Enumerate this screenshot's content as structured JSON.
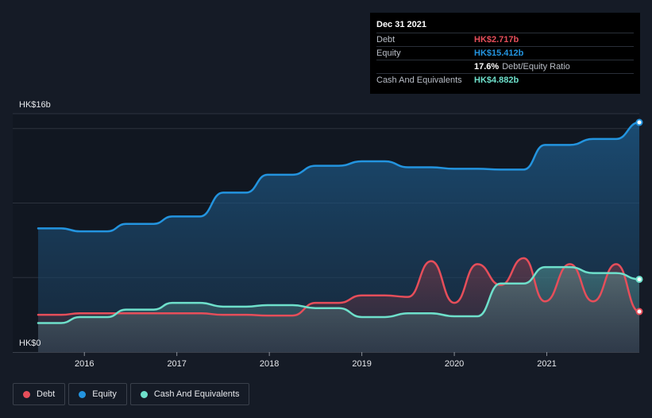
{
  "tooltip": {
    "date": "Dec 31 2021",
    "debt_label": "Debt",
    "debt_value": "HK$2.717b",
    "equity_label": "Equity",
    "equity_value": "HK$15.412b",
    "ratio_value": "17.6%",
    "ratio_label": "Debt/Equity Ratio",
    "cash_label": "Cash And Equivalents",
    "cash_value": "HK$4.882b"
  },
  "legend": {
    "debt": "Debt",
    "equity": "Equity",
    "cash": "Cash And Equivalents"
  },
  "colors": {
    "background": "#151b26",
    "debt": "#e64e5a",
    "equity": "#2394df",
    "cash": "#6ee0cb",
    "grid": "#2c323d"
  },
  "chart_data": {
    "type": "area",
    "ylabel_top": "HK$16b",
    "ylabel_bottom": "HK$0",
    "ylim": [
      0,
      16
    ],
    "xlim": [
      2015.5,
      2022.0
    ],
    "grid": true,
    "legend_position": "bottom-left",
    "x_ticks": [
      "2016",
      "2017",
      "2018",
      "2019",
      "2020",
      "2021"
    ],
    "series": [
      {
        "name": "Equity",
        "color": "#2394df",
        "points": [
          [
            2015.5,
            8.3
          ],
          [
            2015.75,
            8.3
          ],
          [
            2015.95,
            8.1
          ],
          [
            2016.25,
            8.1
          ],
          [
            2016.45,
            8.6
          ],
          [
            2016.75,
            8.6
          ],
          [
            2016.95,
            9.1
          ],
          [
            2017.25,
            9.1
          ],
          [
            2017.5,
            10.7
          ],
          [
            2017.75,
            10.7
          ],
          [
            2017.98,
            11.9
          ],
          [
            2018.25,
            11.9
          ],
          [
            2018.5,
            12.5
          ],
          [
            2018.75,
            12.5
          ],
          [
            2019.0,
            12.8
          ],
          [
            2019.25,
            12.8
          ],
          [
            2019.5,
            12.4
          ],
          [
            2019.75,
            12.4
          ],
          [
            2020.0,
            12.3
          ],
          [
            2020.25,
            12.3
          ],
          [
            2020.5,
            12.25
          ],
          [
            2020.75,
            12.25
          ],
          [
            2020.98,
            13.9
          ],
          [
            2021.25,
            13.9
          ],
          [
            2021.5,
            14.3
          ],
          [
            2021.75,
            14.3
          ],
          [
            2022.0,
            15.412
          ]
        ]
      },
      {
        "name": "Debt",
        "color": "#e64e5a",
        "points": [
          [
            2015.5,
            2.5
          ],
          [
            2015.75,
            2.5
          ],
          [
            2015.95,
            2.6
          ],
          [
            2016.25,
            2.6
          ],
          [
            2016.45,
            2.6
          ],
          [
            2016.75,
            2.6
          ],
          [
            2016.95,
            2.6
          ],
          [
            2017.25,
            2.6
          ],
          [
            2017.5,
            2.5
          ],
          [
            2017.75,
            2.5
          ],
          [
            2017.98,
            2.45
          ],
          [
            2018.25,
            2.45
          ],
          [
            2018.5,
            3.3
          ],
          [
            2018.75,
            3.3
          ],
          [
            2019.0,
            3.8
          ],
          [
            2019.25,
            3.8
          ],
          [
            2019.5,
            3.7
          ],
          [
            2019.75,
            6.1
          ],
          [
            2020.0,
            3.3
          ],
          [
            2020.25,
            5.9
          ],
          [
            2020.5,
            4.5
          ],
          [
            2020.75,
            6.3
          ],
          [
            2020.98,
            3.4
          ],
          [
            2021.25,
            5.9
          ],
          [
            2021.5,
            3.4
          ],
          [
            2021.75,
            5.9
          ],
          [
            2022.0,
            2.717
          ]
        ]
      },
      {
        "name": "Cash And Equivalents",
        "color": "#6ee0cb",
        "points": [
          [
            2015.5,
            1.95
          ],
          [
            2015.75,
            1.95
          ],
          [
            2015.95,
            2.35
          ],
          [
            2016.25,
            2.35
          ],
          [
            2016.45,
            2.85
          ],
          [
            2016.75,
            2.85
          ],
          [
            2016.95,
            3.3
          ],
          [
            2017.25,
            3.3
          ],
          [
            2017.5,
            3.05
          ],
          [
            2017.75,
            3.05
          ],
          [
            2017.98,
            3.15
          ],
          [
            2018.25,
            3.15
          ],
          [
            2018.5,
            2.95
          ],
          [
            2018.75,
            2.95
          ],
          [
            2019.0,
            2.35
          ],
          [
            2019.25,
            2.35
          ],
          [
            2019.5,
            2.6
          ],
          [
            2019.75,
            2.6
          ],
          [
            2020.0,
            2.4
          ],
          [
            2020.25,
            2.4
          ],
          [
            2020.5,
            4.6
          ],
          [
            2020.75,
            4.6
          ],
          [
            2020.98,
            5.7
          ],
          [
            2021.25,
            5.7
          ],
          [
            2021.5,
            5.3
          ],
          [
            2021.75,
            5.3
          ],
          [
            2022.0,
            4.882
          ]
        ]
      }
    ]
  }
}
